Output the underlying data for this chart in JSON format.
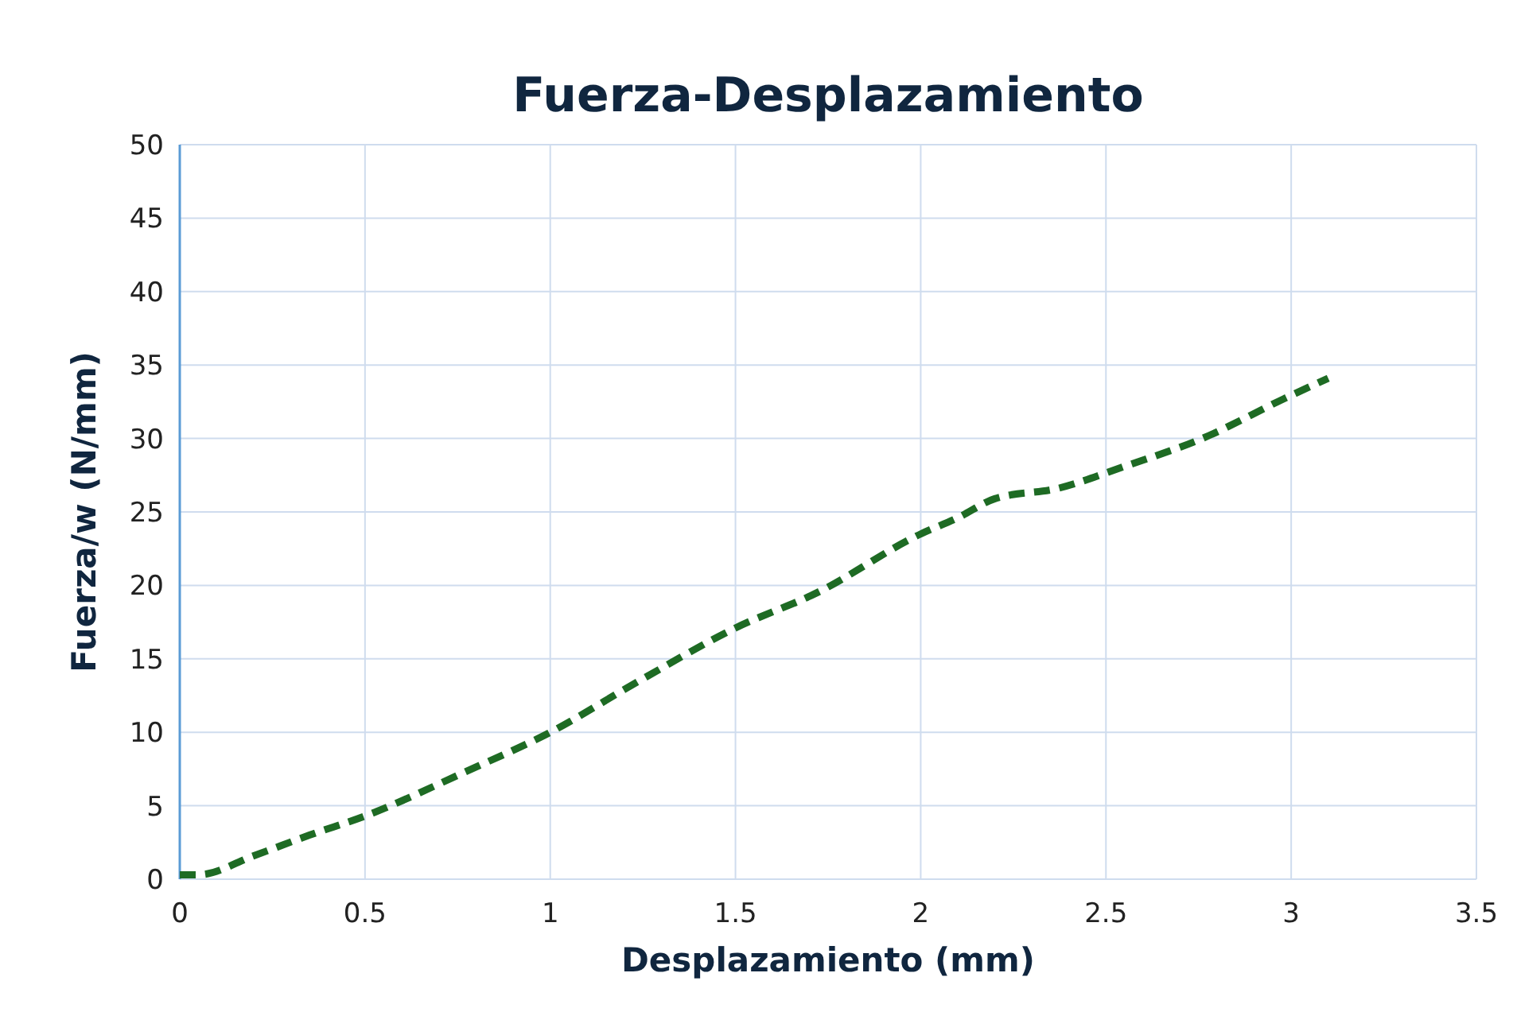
{
  "chart_data": {
    "type": "line",
    "title": "Fuerza-Desplazamiento",
    "xlabel": "Desplazamiento (mm)",
    "ylabel": "Fuerza/w (N/mm)",
    "x": [
      0,
      0.05,
      0.2,
      0.35,
      0.5,
      0.77,
      1.0,
      1.24,
      1.5,
      1.72,
      2.0,
      2.1,
      2.2,
      2.37,
      2.55,
      2.76,
      2.98,
      3.1
    ],
    "series": [
      {
        "color": "#1e6b24",
        "values": [
          0.3,
          0.3,
          1.6,
          3.0,
          4.3,
          7.3,
          10,
          13.5,
          17.1,
          19.5,
          23.5,
          24.6,
          25.9,
          26.6,
          28.1,
          30,
          32.7,
          34.1
        ]
      }
    ],
    "xlim": [
      0,
      3.5
    ],
    "xticks": [
      0,
      0.5,
      1,
      1.5,
      2,
      2.5,
      3,
      3.5
    ],
    "ylim": [
      0,
      50
    ],
    "yticks": [
      0,
      5,
      10,
      15,
      20,
      25,
      30,
      35,
      40,
      45,
      50
    ],
    "grid": true,
    "marker": "none",
    "line_style": "dashed"
  }
}
